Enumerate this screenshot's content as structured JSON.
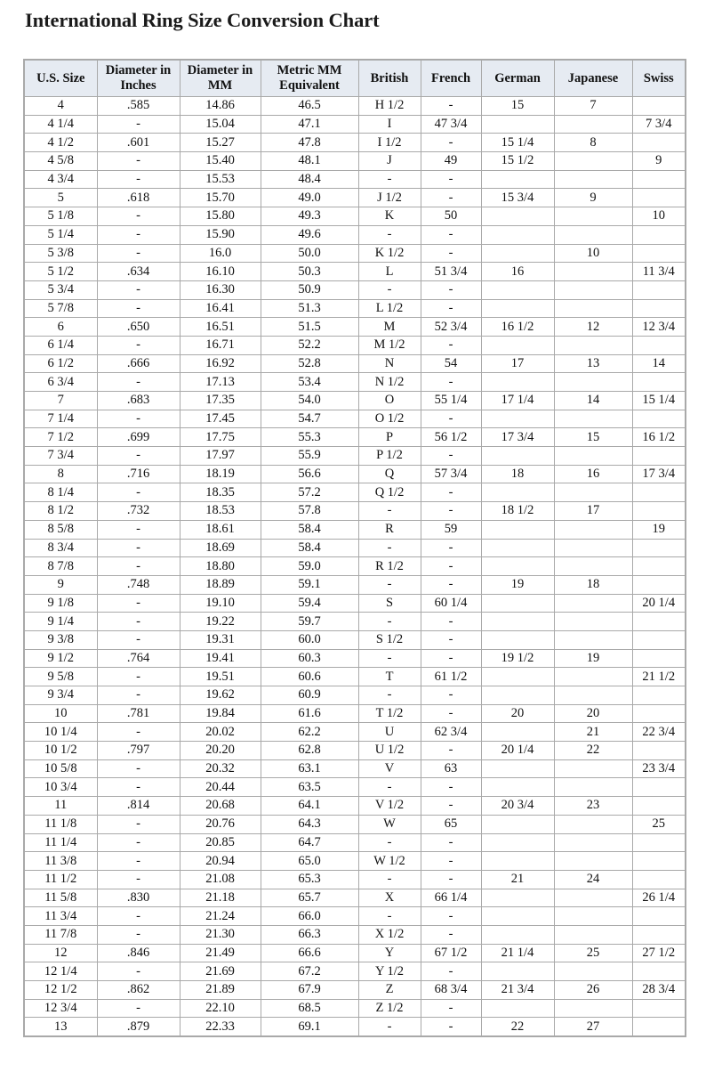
{
  "title": "International Ring Size Conversion Chart",
  "columns": [
    "U.S. Size",
    "Diameter in Inches",
    "Diameter in MM",
    "Metric MM Equivalent",
    "British",
    "French",
    "German",
    "Japanese",
    "Swiss"
  ],
  "rows": [
    [
      "4",
      ".585",
      "14.86",
      "46.5",
      "H 1/2",
      "-",
      "15",
      "7",
      ""
    ],
    [
      "4 1/4",
      "-",
      "15.04",
      "47.1",
      "I",
      "47 3/4",
      "",
      "",
      "7 3/4"
    ],
    [
      "4 1/2",
      ".601",
      "15.27",
      "47.8",
      "I 1/2",
      "-",
      "15 1/4",
      "8",
      ""
    ],
    [
      "4 5/8",
      "-",
      "15.40",
      "48.1",
      "J",
      "49",
      "15 1/2",
      "",
      "9"
    ],
    [
      "4 3/4",
      "-",
      "15.53",
      "48.4",
      "-",
      "-",
      "",
      "",
      ""
    ],
    [
      "5",
      ".618",
      "15.70",
      "49.0",
      "J 1/2",
      "-",
      "15 3/4",
      "9",
      ""
    ],
    [
      "5 1/8",
      "-",
      "15.80",
      "49.3",
      "K",
      "50",
      "",
      "",
      "10"
    ],
    [
      "5 1/4",
      "-",
      "15.90",
      "49.6",
      "-",
      "-",
      "",
      "",
      ""
    ],
    [
      "5 3/8",
      "-",
      "16.0",
      "50.0",
      "K 1/2",
      "-",
      "",
      "10",
      ""
    ],
    [
      "5 1/2",
      ".634",
      "16.10",
      "50.3",
      "L",
      "51 3/4",
      "16",
      "",
      "11 3/4"
    ],
    [
      "5 3/4",
      "-",
      "16.30",
      "50.9",
      "-",
      "-",
      "",
      "",
      ""
    ],
    [
      "5 7/8",
      "-",
      "16.41",
      "51.3",
      "L 1/2",
      "-",
      "",
      "",
      ""
    ],
    [
      "6",
      ".650",
      "16.51",
      "51.5",
      "M",
      "52 3/4",
      "16 1/2",
      "12",
      "12 3/4"
    ],
    [
      "6 1/4",
      "-",
      "16.71",
      "52.2",
      "M 1/2",
      "-",
      "",
      "",
      ""
    ],
    [
      "6 1/2",
      ".666",
      "16.92",
      "52.8",
      "N",
      "54",
      "17",
      "13",
      "14"
    ],
    [
      "6 3/4",
      "-",
      "17.13",
      "53.4",
      "N 1/2",
      "-",
      "",
      "",
      ""
    ],
    [
      "7",
      ".683",
      "17.35",
      "54.0",
      "O",
      "55 1/4",
      "17 1/4",
      "14",
      "15 1/4"
    ],
    [
      "7 1/4",
      "-",
      "17.45",
      "54.7",
      "O 1/2",
      "-",
      "",
      "",
      ""
    ],
    [
      "7 1/2",
      ".699",
      "17.75",
      "55.3",
      "P",
      "56 1/2",
      "17 3/4",
      "15",
      "16 1/2"
    ],
    [
      "7 3/4",
      "-",
      "17.97",
      "55.9",
      "P 1/2",
      "-",
      "",
      "",
      ""
    ],
    [
      "8",
      ".716",
      "18.19",
      "56.6",
      "Q",
      "57 3/4",
      "18",
      "16",
      "17 3/4"
    ],
    [
      "8 1/4",
      "-",
      "18.35",
      "57.2",
      "Q 1/2",
      "-",
      "",
      "",
      ""
    ],
    [
      "8 1/2",
      ".732",
      "18.53",
      "57.8",
      "-",
      "-",
      "18 1/2",
      "17",
      ""
    ],
    [
      "8 5/8",
      "-",
      "18.61",
      "58.4",
      "R",
      "59",
      "",
      "",
      "19"
    ],
    [
      "8 3/4",
      "-",
      "18.69",
      "58.4",
      "-",
      "-",
      "",
      "",
      ""
    ],
    [
      "8 7/8",
      "-",
      "18.80",
      "59.0",
      "R 1/2",
      "-",
      "",
      "",
      ""
    ],
    [
      "9",
      ".748",
      "18.89",
      "59.1",
      "-",
      "-",
      "19",
      "18",
      ""
    ],
    [
      "9 1/8",
      "-",
      "19.10",
      "59.4",
      "S",
      "60 1/4",
      "",
      "",
      "20 1/4"
    ],
    [
      "9 1/4",
      "-",
      "19.22",
      "59.7",
      "-",
      "-",
      "",
      "",
      ""
    ],
    [
      "9 3/8",
      "-",
      "19.31",
      "60.0",
      "S 1/2",
      "-",
      "",
      "",
      ""
    ],
    [
      "9 1/2",
      ".764",
      "19.41",
      "60.3",
      "-",
      "-",
      "19 1/2",
      "19",
      ""
    ],
    [
      "9 5/8",
      "-",
      "19.51",
      "60.6",
      "T",
      "61 1/2",
      "",
      "",
      "21 1/2"
    ],
    [
      "9 3/4",
      "-",
      "19.62",
      "60.9",
      "-",
      "-",
      "",
      "",
      ""
    ],
    [
      "10",
      ".781",
      "19.84",
      "61.6",
      "T 1/2",
      "-",
      "20",
      "20",
      ""
    ],
    [
      "10 1/4",
      "-",
      "20.02",
      "62.2",
      "U",
      "62 3/4",
      "",
      "21",
      "22 3/4"
    ],
    [
      "10 1/2",
      ".797",
      "20.20",
      "62.8",
      "U 1/2",
      "-",
      "20 1/4",
      "22",
      ""
    ],
    [
      "10 5/8",
      "-",
      "20.32",
      "63.1",
      "V",
      "63",
      "",
      "",
      "23 3/4"
    ],
    [
      "10 3/4",
      "-",
      "20.44",
      "63.5",
      "-",
      "-",
      "",
      "",
      ""
    ],
    [
      "11",
      ".814",
      "20.68",
      "64.1",
      "V 1/2",
      "-",
      "20 3/4",
      "23",
      ""
    ],
    [
      "11 1/8",
      "-",
      "20.76",
      "64.3",
      "W",
      "65",
      "",
      "",
      "25"
    ],
    [
      "11 1/4",
      "-",
      "20.85",
      "64.7",
      "-",
      "-",
      "",
      "",
      ""
    ],
    [
      "11 3/8",
      "-",
      "20.94",
      "65.0",
      "W 1/2",
      "-",
      "",
      "",
      ""
    ],
    [
      "11 1/2",
      "-",
      "21.08",
      "65.3",
      "-",
      "-",
      "21",
      "24",
      ""
    ],
    [
      "11 5/8",
      ".830",
      "21.18",
      "65.7",
      "X",
      "66 1/4",
      "",
      "",
      "26 1/4"
    ],
    [
      "11 3/4",
      "-",
      "21.24",
      "66.0",
      "-",
      "-",
      "",
      "",
      ""
    ],
    [
      "11 7/8",
      "-",
      "21.30",
      "66.3",
      "X 1/2",
      "-",
      "",
      "",
      ""
    ],
    [
      "12",
      ".846",
      "21.49",
      "66.6",
      "Y",
      "67 1/2",
      "21 1/4",
      "25",
      "27 1/2"
    ],
    [
      "12 1/4",
      "-",
      "21.69",
      "67.2",
      "Y 1/2",
      "-",
      "",
      "",
      ""
    ],
    [
      "12 1/2",
      ".862",
      "21.89",
      "67.9",
      "Z",
      "68 3/4",
      "21 3/4",
      "26",
      "28 3/4"
    ],
    [
      "12 3/4",
      "-",
      "22.10",
      "68.5",
      "Z 1/2",
      "-",
      "",
      "",
      ""
    ],
    [
      "13",
      ".879",
      "22.33",
      "69.1",
      "-",
      "-",
      "22",
      "27",
      ""
    ]
  ]
}
